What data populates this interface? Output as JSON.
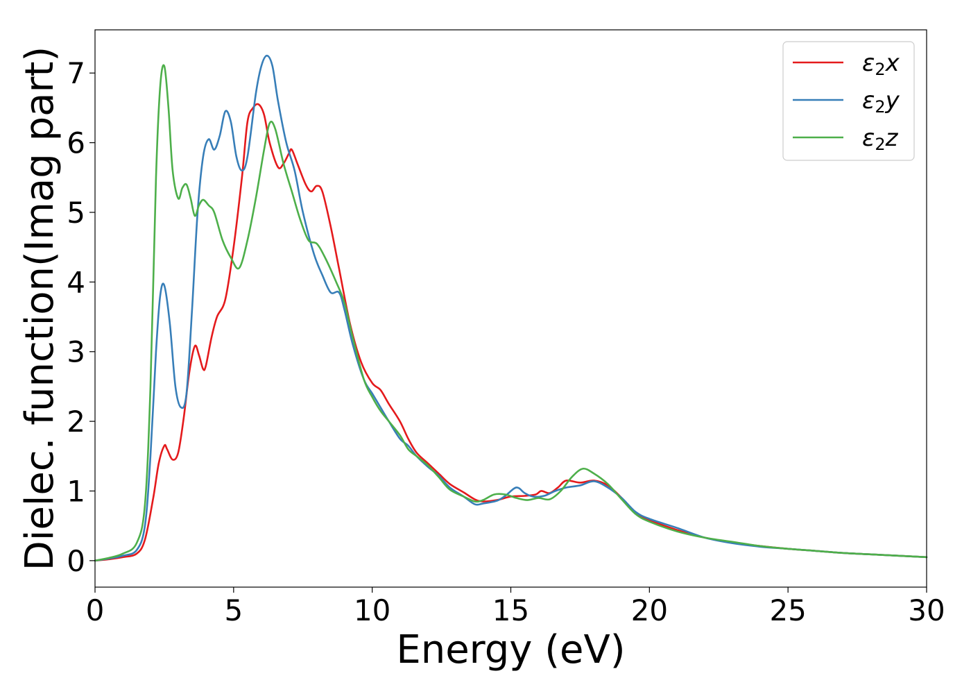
{
  "chart_data": {
    "type": "line",
    "xlabel": "Energy (eV)",
    "ylabel": "Dielec. function(Imag part)",
    "xlim": [
      0,
      30
    ],
    "ylim": [
      -0.38,
      7.62
    ],
    "xticks": [
      0,
      5,
      10,
      15,
      20,
      25,
      30
    ],
    "yticks": [
      0,
      1,
      2,
      3,
      4,
      5,
      6,
      7
    ],
    "xtick_labels": [
      "0",
      "5",
      "10",
      "15",
      "20",
      "25",
      "30"
    ],
    "ytick_labels": [
      "0",
      "1",
      "2",
      "3",
      "4",
      "5",
      "6",
      "7"
    ],
    "grid": false,
    "legend_position": "top-right",
    "series": [
      {
        "name": "ε2x",
        "legend_label": {
          "base": "ε",
          "sub": "2",
          "suffix": "x"
        },
        "color": "#e41a1c",
        "points": [
          [
            0,
            0
          ],
          [
            0.5,
            0.02
          ],
          [
            1.0,
            0.05
          ],
          [
            1.5,
            0.1
          ],
          [
            1.8,
            0.3
          ],
          [
            2.1,
            0.9
          ],
          [
            2.3,
            1.4
          ],
          [
            2.5,
            1.65
          ],
          [
            2.6,
            1.6
          ],
          [
            2.8,
            1.45
          ],
          [
            3.0,
            1.55
          ],
          [
            3.2,
            2.05
          ],
          [
            3.4,
            2.7
          ],
          [
            3.6,
            3.08
          ],
          [
            3.75,
            2.95
          ],
          [
            3.9,
            2.75
          ],
          [
            4.0,
            2.8
          ],
          [
            4.2,
            3.2
          ],
          [
            4.4,
            3.5
          ],
          [
            4.7,
            3.75
          ],
          [
            5.0,
            4.5
          ],
          [
            5.3,
            5.5
          ],
          [
            5.5,
            6.3
          ],
          [
            5.7,
            6.5
          ],
          [
            5.9,
            6.55
          ],
          [
            6.1,
            6.4
          ],
          [
            6.3,
            6.0
          ],
          [
            6.6,
            5.65
          ],
          [
            6.8,
            5.7
          ],
          [
            7.0,
            5.85
          ],
          [
            7.1,
            5.9
          ],
          [
            7.3,
            5.7
          ],
          [
            7.6,
            5.4
          ],
          [
            7.8,
            5.3
          ],
          [
            8.0,
            5.38
          ],
          [
            8.2,
            5.3
          ],
          [
            8.5,
            4.8
          ],
          [
            8.8,
            4.2
          ],
          [
            9.2,
            3.4
          ],
          [
            9.6,
            2.85
          ],
          [
            10.0,
            2.55
          ],
          [
            10.3,
            2.45
          ],
          [
            10.6,
            2.25
          ],
          [
            11.0,
            2.0
          ],
          [
            11.3,
            1.75
          ],
          [
            11.6,
            1.55
          ],
          [
            12.0,
            1.4
          ],
          [
            12.4,
            1.25
          ],
          [
            12.8,
            1.1
          ],
          [
            13.3,
            0.98
          ],
          [
            13.7,
            0.88
          ],
          [
            14.0,
            0.85
          ],
          [
            14.5,
            0.87
          ],
          [
            15.0,
            0.92
          ],
          [
            15.5,
            0.93
          ],
          [
            15.9,
            0.95
          ],
          [
            16.1,
            1.0
          ],
          [
            16.4,
            0.97
          ],
          [
            16.7,
            1.05
          ],
          [
            17.0,
            1.15
          ],
          [
            17.5,
            1.12
          ],
          [
            18.0,
            1.15
          ],
          [
            18.5,
            1.08
          ],
          [
            19.0,
            0.9
          ],
          [
            19.5,
            0.68
          ],
          [
            20.0,
            0.58
          ],
          [
            21.0,
            0.44
          ],
          [
            22.0,
            0.33
          ],
          [
            23.0,
            0.26
          ],
          [
            24.0,
            0.21
          ],
          [
            25.0,
            0.17
          ],
          [
            26.0,
            0.14
          ],
          [
            27.0,
            0.11
          ],
          [
            28.0,
            0.09
          ],
          [
            29.0,
            0.07
          ],
          [
            30.0,
            0.05
          ]
        ]
      },
      {
        "name": "ε2y",
        "legend_label": {
          "base": "ε",
          "sub": "2",
          "suffix": "y"
        },
        "color": "#377eb8",
        "points": [
          [
            0,
            0
          ],
          [
            0.5,
            0.03
          ],
          [
            1.0,
            0.07
          ],
          [
            1.5,
            0.15
          ],
          [
            1.8,
            0.5
          ],
          [
            2.0,
            1.5
          ],
          [
            2.2,
            3.0
          ],
          [
            2.35,
            3.8
          ],
          [
            2.5,
            3.95
          ],
          [
            2.7,
            3.4
          ],
          [
            2.9,
            2.5
          ],
          [
            3.1,
            2.2
          ],
          [
            3.3,
            2.4
          ],
          [
            3.5,
            3.6
          ],
          [
            3.7,
            5.0
          ],
          [
            3.9,
            5.8
          ],
          [
            4.1,
            6.05
          ],
          [
            4.3,
            5.9
          ],
          [
            4.5,
            6.1
          ],
          [
            4.7,
            6.45
          ],
          [
            4.9,
            6.3
          ],
          [
            5.1,
            5.8
          ],
          [
            5.3,
            5.6
          ],
          [
            5.5,
            5.8
          ],
          [
            5.8,
            6.7
          ],
          [
            6.0,
            7.1
          ],
          [
            6.2,
            7.25
          ],
          [
            6.4,
            7.1
          ],
          [
            6.6,
            6.6
          ],
          [
            6.9,
            6.0
          ],
          [
            7.2,
            5.6
          ],
          [
            7.5,
            5.0
          ],
          [
            7.9,
            4.4
          ],
          [
            8.2,
            4.1
          ],
          [
            8.5,
            3.85
          ],
          [
            8.8,
            3.85
          ],
          [
            9.0,
            3.6
          ],
          [
            9.3,
            3.1
          ],
          [
            9.7,
            2.6
          ],
          [
            10.0,
            2.4
          ],
          [
            10.3,
            2.2
          ],
          [
            10.6,
            2.0
          ],
          [
            11.0,
            1.75
          ],
          [
            11.3,
            1.65
          ],
          [
            11.6,
            1.5
          ],
          [
            12.0,
            1.35
          ],
          [
            12.4,
            1.22
          ],
          [
            12.8,
            1.05
          ],
          [
            13.3,
            0.92
          ],
          [
            13.7,
            0.81
          ],
          [
            14.0,
            0.82
          ],
          [
            14.5,
            0.86
          ],
          [
            14.8,
            0.93
          ],
          [
            15.2,
            1.05
          ],
          [
            15.5,
            0.97
          ],
          [
            15.8,
            0.92
          ],
          [
            16.2,
            0.93
          ],
          [
            16.6,
            1.0
          ],
          [
            17.0,
            1.05
          ],
          [
            17.5,
            1.08
          ],
          [
            18.0,
            1.14
          ],
          [
            18.5,
            1.05
          ],
          [
            19.0,
            0.9
          ],
          [
            19.5,
            0.7
          ],
          [
            20.0,
            0.6
          ],
          [
            21.0,
            0.47
          ],
          [
            22.0,
            0.33
          ],
          [
            23.0,
            0.25
          ],
          [
            24.0,
            0.2
          ],
          [
            25.0,
            0.17
          ],
          [
            26.0,
            0.14
          ],
          [
            27.0,
            0.11
          ],
          [
            28.0,
            0.09
          ],
          [
            29.0,
            0.07
          ],
          [
            30.0,
            0.05
          ]
        ]
      },
      {
        "name": "ε2z",
        "legend_label": {
          "base": "ε",
          "sub": "2",
          "suffix": "z"
        },
        "color": "#4daf4a",
        "points": [
          [
            0,
            0
          ],
          [
            0.5,
            0.04
          ],
          [
            1.0,
            0.1
          ],
          [
            1.5,
            0.25
          ],
          [
            1.8,
            0.8
          ],
          [
            2.0,
            2.5
          ],
          [
            2.2,
            5.5
          ],
          [
            2.35,
            6.8
          ],
          [
            2.5,
            7.1
          ],
          [
            2.65,
            6.5
          ],
          [
            2.8,
            5.6
          ],
          [
            3.0,
            5.2
          ],
          [
            3.15,
            5.35
          ],
          [
            3.3,
            5.4
          ],
          [
            3.45,
            5.2
          ],
          [
            3.6,
            4.95
          ],
          [
            3.75,
            5.1
          ],
          [
            3.9,
            5.18
          ],
          [
            4.1,
            5.1
          ],
          [
            4.3,
            5.0
          ],
          [
            4.6,
            4.6
          ],
          [
            4.9,
            4.35
          ],
          [
            5.2,
            4.2
          ],
          [
            5.5,
            4.6
          ],
          [
            5.8,
            5.2
          ],
          [
            6.1,
            5.9
          ],
          [
            6.3,
            6.28
          ],
          [
            6.5,
            6.2
          ],
          [
            6.8,
            5.7
          ],
          [
            7.1,
            5.3
          ],
          [
            7.4,
            4.9
          ],
          [
            7.7,
            4.6
          ],
          [
            8.0,
            4.55
          ],
          [
            8.3,
            4.35
          ],
          [
            8.7,
            4.0
          ],
          [
            9.0,
            3.7
          ],
          [
            9.3,
            3.2
          ],
          [
            9.7,
            2.6
          ],
          [
            10.0,
            2.35
          ],
          [
            10.3,
            2.15
          ],
          [
            10.6,
            2.0
          ],
          [
            11.0,
            1.8
          ],
          [
            11.3,
            1.6
          ],
          [
            11.6,
            1.5
          ],
          [
            12.0,
            1.37
          ],
          [
            12.4,
            1.2
          ],
          [
            12.8,
            1.02
          ],
          [
            13.3,
            0.92
          ],
          [
            13.7,
            0.85
          ],
          [
            14.0,
            0.87
          ],
          [
            14.4,
            0.95
          ],
          [
            14.8,
            0.95
          ],
          [
            15.2,
            0.9
          ],
          [
            15.6,
            0.87
          ],
          [
            16.0,
            0.9
          ],
          [
            16.4,
            0.88
          ],
          [
            16.8,
            1.0
          ],
          [
            17.2,
            1.2
          ],
          [
            17.6,
            1.32
          ],
          [
            18.0,
            1.25
          ],
          [
            18.5,
            1.1
          ],
          [
            19.0,
            0.88
          ],
          [
            19.5,
            0.67
          ],
          [
            20.0,
            0.56
          ],
          [
            21.0,
            0.42
          ],
          [
            22.0,
            0.33
          ],
          [
            23.0,
            0.27
          ],
          [
            24.0,
            0.21
          ],
          [
            25.0,
            0.17
          ],
          [
            26.0,
            0.14
          ],
          [
            27.0,
            0.11
          ],
          [
            28.0,
            0.09
          ],
          [
            29.0,
            0.07
          ],
          [
            30.0,
            0.05
          ]
        ]
      }
    ]
  }
}
